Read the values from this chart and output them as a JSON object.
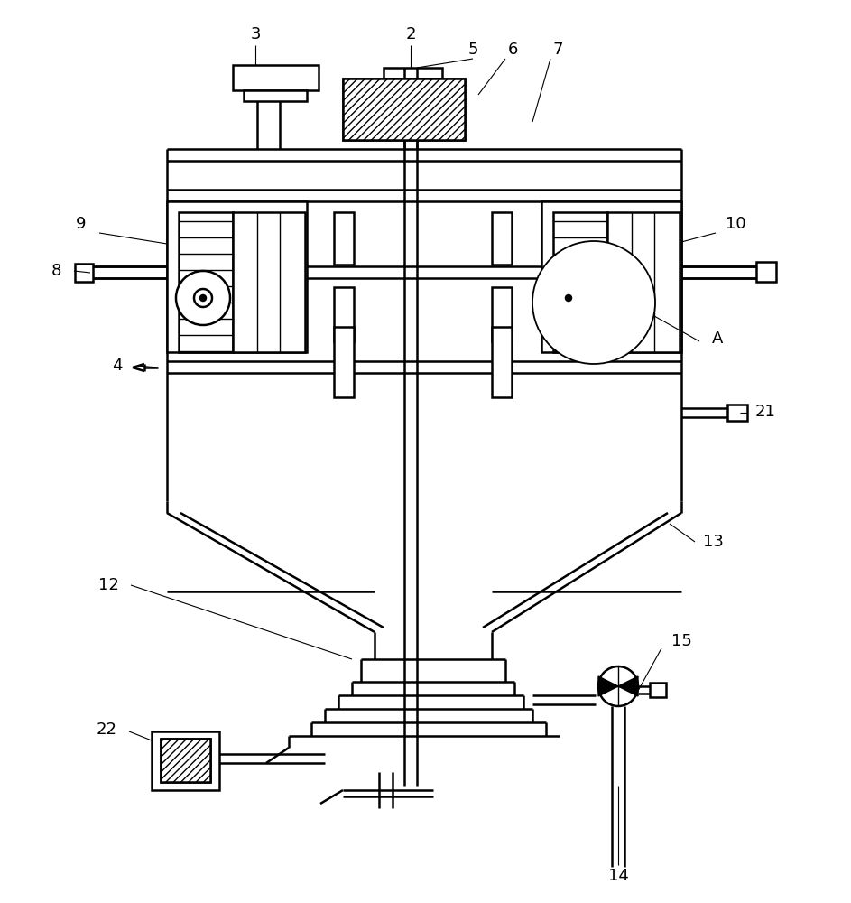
{
  "line_color": "#000000",
  "bg_color": "#ffffff",
  "lw": 1.8,
  "tlw": 1.0
}
